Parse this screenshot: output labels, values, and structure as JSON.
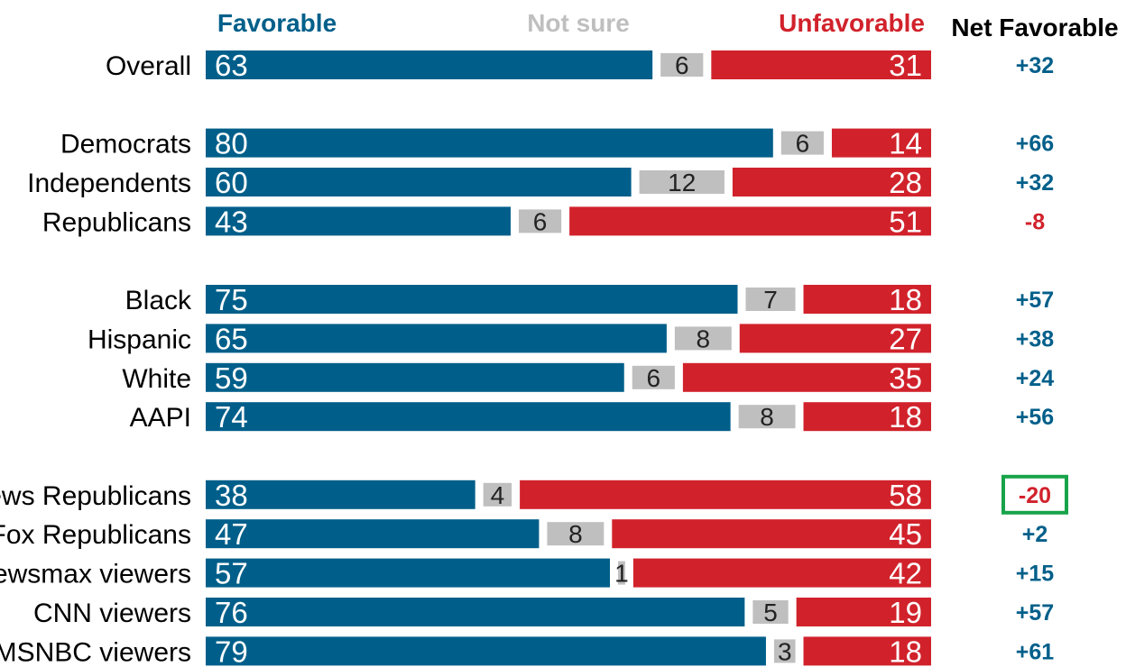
{
  "colors": {
    "favorable": "#005f8a",
    "not_sure": "#bfbfbf",
    "unfavorable": "#d1222b",
    "net_positive": "#005f8a",
    "net_negative": "#d1222b",
    "highlight_box": "#17a34a"
  },
  "chart_data": {
    "type": "bar",
    "orientation": "horizontal",
    "stacked": true,
    "headers": {
      "favorable": "Favorable",
      "not_sure": "Not sure",
      "unfavorable": "Unfavorable",
      "net": "Net Favorable"
    },
    "series": [
      {
        "name": "Favorable",
        "color": "#005f8a"
      },
      {
        "name": "Not sure",
        "color": "#bfbfbf"
      },
      {
        "name": "Unfavorable",
        "color": "#d1222b"
      }
    ],
    "groups": [
      [
        {
          "label": "Overall",
          "favorable": 63,
          "not_sure": 6,
          "unfavorable": 31,
          "net": "+32"
        }
      ],
      [
        {
          "label": "Democrats",
          "favorable": 80,
          "not_sure": 6,
          "unfavorable": 14,
          "net": "+66"
        },
        {
          "label": "Independents",
          "favorable": 60,
          "not_sure": 12,
          "unfavorable": 28,
          "net": "+32"
        },
        {
          "label": "Republicans",
          "favorable": 43,
          "not_sure": 6,
          "unfavorable": 51,
          "net": "-8"
        }
      ],
      [
        {
          "label": "Black",
          "favorable": 75,
          "not_sure": 7,
          "unfavorable": 18,
          "net": "+57"
        },
        {
          "label": "Hispanic",
          "favorable": 65,
          "not_sure": 8,
          "unfavorable": 27,
          "net": "+38"
        },
        {
          "label": "White",
          "favorable": 59,
          "not_sure": 6,
          "unfavorable": 35,
          "net": "+24"
        },
        {
          "label": "AAPI",
          "favorable": 74,
          "not_sure": 8,
          "unfavorable": 18,
          "net": "+56"
        }
      ],
      [
        {
          "label": "Fox News Republicans",
          "favorable": 38,
          "not_sure": 4,
          "unfavorable": 58,
          "net": "-20",
          "highlight": true
        },
        {
          "label": "Non-Fox Republicans",
          "favorable": 47,
          "not_sure": 8,
          "unfavorable": 45,
          "net": "+2"
        },
        {
          "label": "Newsmax viewers",
          "favorable": 57,
          "not_sure": 1,
          "unfavorable": 42,
          "net": "+15"
        },
        {
          "label": "CNN viewers",
          "favorable": 76,
          "not_sure": 5,
          "unfavorable": 19,
          "net": "+57"
        },
        {
          "label": "MSNBC viewers",
          "favorable": 79,
          "not_sure": 3,
          "unfavorable": 18,
          "net": "+61"
        }
      ]
    ],
    "xlim": [
      0,
      100
    ]
  }
}
